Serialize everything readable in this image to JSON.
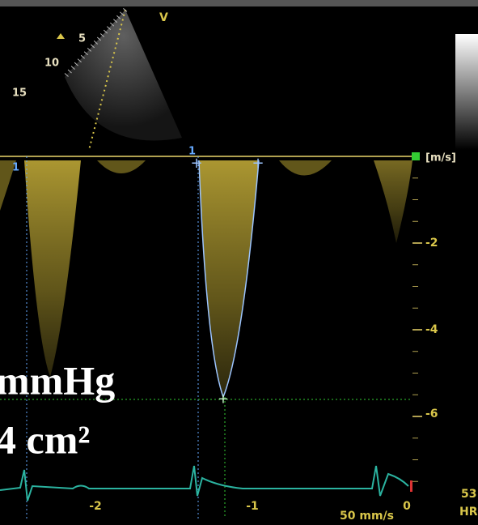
{
  "sector": {
    "view_label": "V",
    "depth_labels": [
      "5",
      "10",
      "15"
    ]
  },
  "markers": {
    "left": "1",
    "cursor": "1"
  },
  "velocity_scale": {
    "unit": "[m/s]",
    "ticks": [
      "-2",
      "-4",
      "-6"
    ]
  },
  "overlay": {
    "line1": "mmHg",
    "line2": "4 cm²"
  },
  "time_scale": {
    "ticks": [
      "-2",
      "-1",
      "0"
    ],
    "sweep": "50 mm/s"
  },
  "heart_rate": {
    "value": "53",
    "label": "HR"
  }
}
